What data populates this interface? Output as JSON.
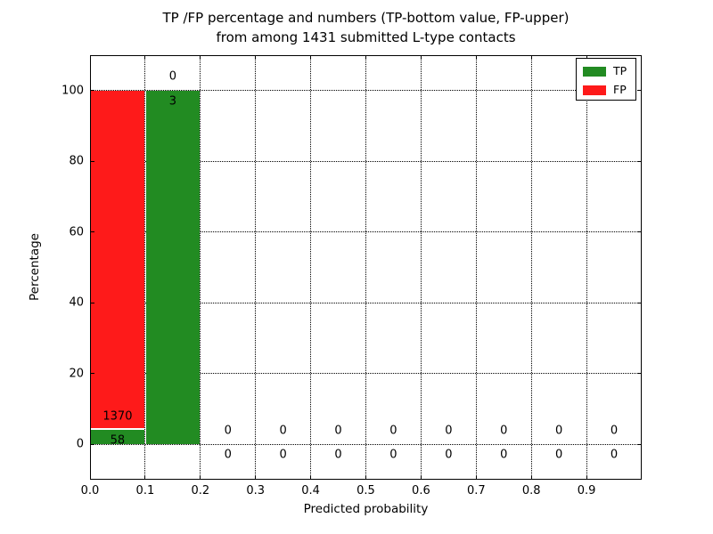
{
  "figure": {
    "title_line1": "TP /FP percentage and numbers (TP-bottom value, FP-upper)",
    "title_line2": "from among 1431 submitted L-type contacts",
    "background": "#ffffff"
  },
  "axes": {
    "xlabel": "Predicted probability",
    "ylabel": "Percentage"
  },
  "chart_data": {
    "type": "bar",
    "stacked": true,
    "percent_scale": true,
    "title": "TP /FP percentage and numbers (TP-bottom value, FP-upper) from among 1431 submitted L-type contacts",
    "xlabel": "Predicted probability",
    "ylabel": "Percentage",
    "xlim": [
      0.0,
      1.0
    ],
    "ylim": [
      -10,
      110
    ],
    "grid": true,
    "bin_width": 0.1,
    "total_submitted": 1431,
    "categories": [
      "0.0-0.1",
      "0.1-0.2",
      "0.2-0.3",
      "0.3-0.4",
      "0.4-0.5",
      "0.5-0.6",
      "0.6-0.7",
      "0.7-0.8",
      "0.8-0.9",
      "0.9-1.0"
    ],
    "x_ticks": [
      {
        "v": 0.0,
        "label": "0.0"
      },
      {
        "v": 0.1,
        "label": "0.1"
      },
      {
        "v": 0.2,
        "label": "0.2"
      },
      {
        "v": 0.3,
        "label": "0.3"
      },
      {
        "v": 0.4,
        "label": "0.4"
      },
      {
        "v": 0.5,
        "label": "0.5"
      },
      {
        "v": 0.6,
        "label": "0.6"
      },
      {
        "v": 0.7,
        "label": "0.7"
      },
      {
        "v": 0.8,
        "label": "0.8"
      },
      {
        "v": 0.9,
        "label": "0.9"
      }
    ],
    "y_ticks": [
      {
        "v": 0,
        "label": "0"
      },
      {
        "v": 20,
        "label": "20"
      },
      {
        "v": 40,
        "label": "40"
      },
      {
        "v": 60,
        "label": "60"
      },
      {
        "v": 80,
        "label": "80"
      },
      {
        "v": 100,
        "label": "100"
      }
    ],
    "series": [
      {
        "name": "TP",
        "color": "#228b22",
        "counts": [
          58,
          3,
          0,
          0,
          0,
          0,
          0,
          0,
          0,
          0
        ],
        "pct": [
          4.06,
          100,
          0,
          0,
          0,
          0,
          0,
          0,
          0,
          0
        ]
      },
      {
        "name": "FP",
        "color": "#fe1a1a",
        "counts": [
          1370,
          0,
          0,
          0,
          0,
          0,
          0,
          0,
          0,
          0
        ],
        "pct": [
          95.94,
          0,
          0,
          0,
          0,
          0,
          0,
          0,
          0,
          0
        ]
      }
    ],
    "legend_position": "upper right"
  },
  "legend": {
    "items": [
      {
        "label": "TP",
        "color": "#228b22"
      },
      {
        "label": "FP",
        "color": "#fe1a1a"
      }
    ]
  }
}
